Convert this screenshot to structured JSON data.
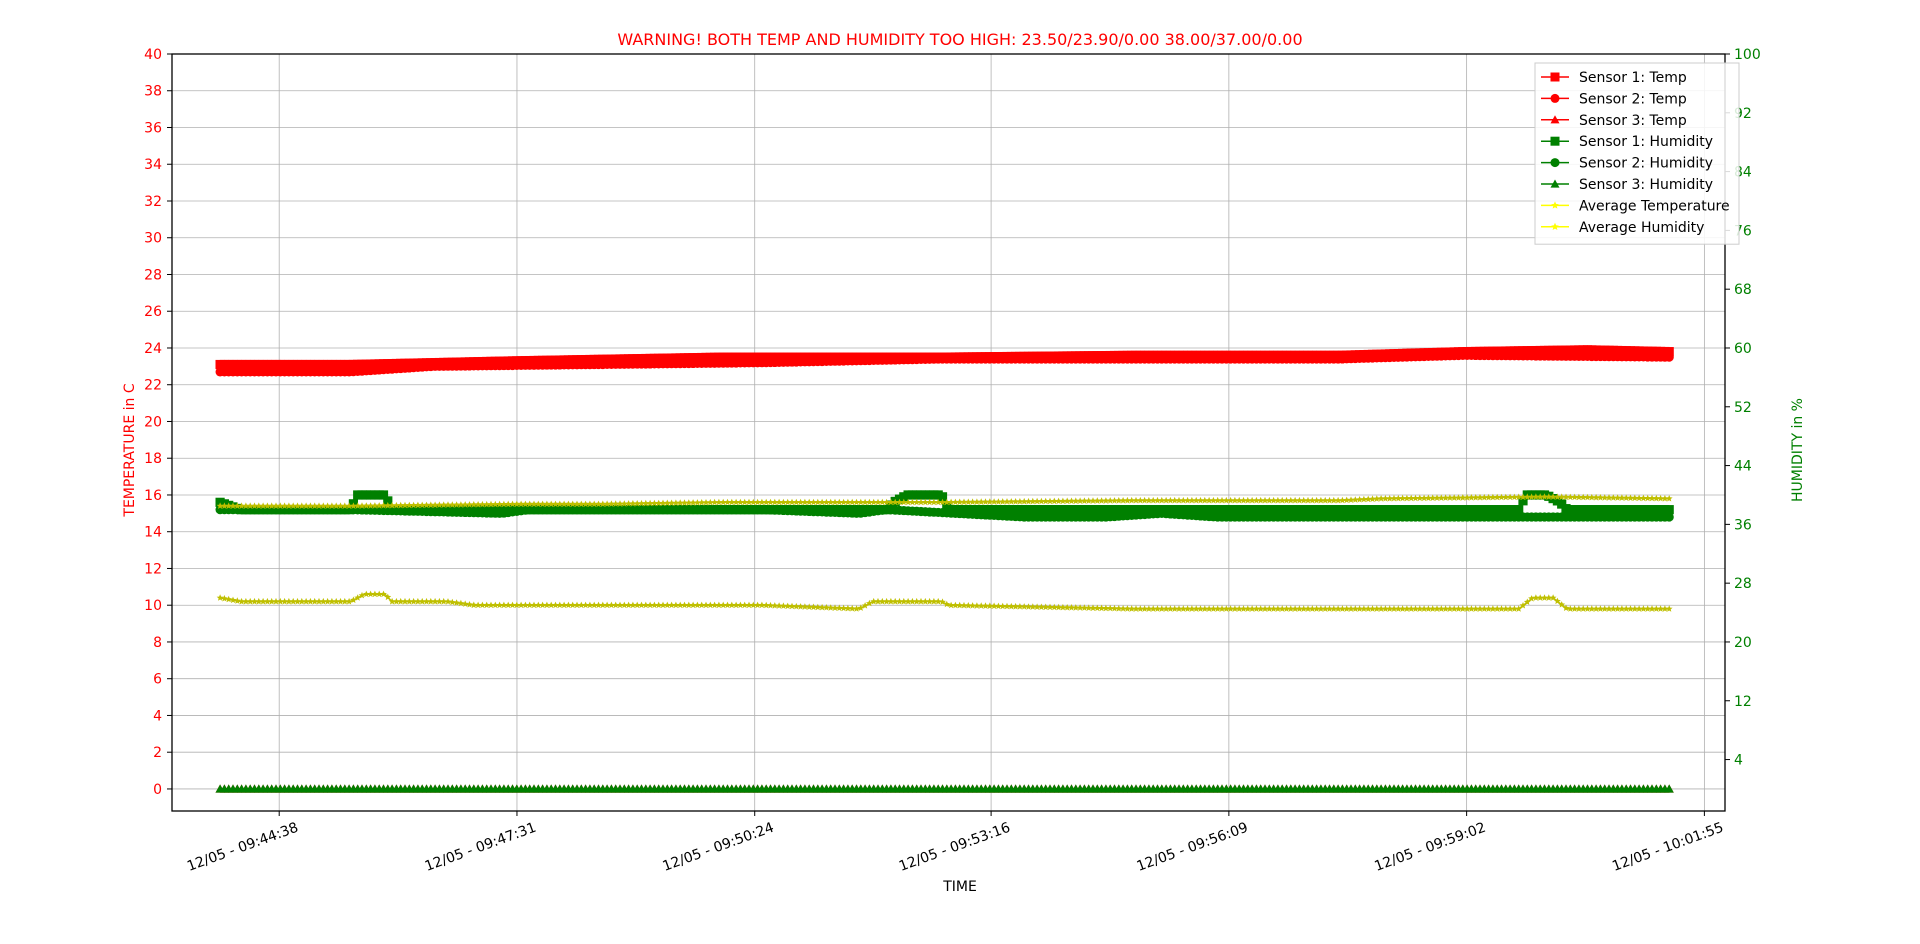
{
  "chart_data": {
    "type": "line",
    "title": "WARNING! BOTH TEMP AND HUMIDITY TOO HIGH: 23.50/23.90/0.00   38.00/37.00/0.00",
    "xlabel": "TIME",
    "ylabel_left": "TEMPERATURE in C",
    "ylabel_right": "HUMIDITY in %",
    "ylim_left": [
      -1.2,
      40
    ],
    "ylim_right": [
      -3,
      100
    ],
    "xlim": [
      "12/05 - 09:43:20",
      "12/05 - 10:02:10"
    ],
    "x_ticks": [
      "12/05 - 09:44:38",
      "12/05 - 09:47:31",
      "12/05 - 09:50:24",
      "12/05 - 09:53:16",
      "12/05 - 09:56:09",
      "12/05 - 09:59:02",
      "12/05 - 10:01:55"
    ],
    "y_ticks_left": [
      0,
      2,
      4,
      6,
      8,
      10,
      12,
      14,
      16,
      18,
      20,
      22,
      24,
      26,
      28,
      30,
      32,
      34,
      36,
      38,
      40
    ],
    "y_ticks_right": [
      4,
      12,
      20,
      28,
      36,
      44,
      52,
      60,
      68,
      76,
      84,
      92,
      100
    ],
    "grid": true,
    "legend_position": "top-right",
    "colors": {
      "temperature": "#ff0000",
      "humidity": "#008000",
      "average": "#bfbf00",
      "average_legend": "#ffff00"
    },
    "series": [
      {
        "name": "Sensor 1: Temp",
        "axis": "left",
        "color": "#ff0000",
        "marker": "square",
        "points": [
          [
            "12/05 - 09:43:55",
            23.1
          ],
          [
            "12/05 - 09:45:30",
            23.1
          ],
          [
            "12/05 - 09:47:30",
            23.3
          ],
          [
            "12/05 - 09:50:00",
            23.5
          ],
          [
            "12/05 - 09:52:40",
            23.5
          ],
          [
            "12/05 - 09:55:00",
            23.6
          ],
          [
            "12/05 - 09:57:30",
            23.6
          ],
          [
            "12/05 - 09:59:00",
            23.8
          ],
          [
            "12/05 - 10:00:30",
            23.9
          ],
          [
            "12/05 - 10:01:30",
            23.8
          ]
        ]
      },
      {
        "name": "Sensor 2: Temp",
        "axis": "left",
        "color": "#ff0000",
        "marker": "circle",
        "points": [
          [
            "12/05 - 09:43:55",
            22.7
          ],
          [
            "12/05 - 09:45:30",
            22.7
          ],
          [
            "12/05 - 09:46:30",
            23.0
          ],
          [
            "12/05 - 09:48:30",
            23.1
          ],
          [
            "12/05 - 09:50:30",
            23.2
          ],
          [
            "12/05 - 09:52:40",
            23.4
          ],
          [
            "12/05 - 09:55:00",
            23.4
          ],
          [
            "12/05 - 09:57:30",
            23.4
          ],
          [
            "12/05 - 09:59:00",
            23.6
          ],
          [
            "12/05 - 10:01:30",
            23.5
          ]
        ]
      },
      {
        "name": "Sensor 3: Temp",
        "axis": "left",
        "color": "#ff0000",
        "marker": "triangle",
        "points": [
          [
            "12/05 - 09:43:55",
            0
          ],
          [
            "12/05 - 10:01:30",
            0
          ]
        ]
      },
      {
        "name": "Sensor 1: Humidity",
        "axis": "right",
        "color": "#008000",
        "marker": "square",
        "points": [
          [
            "12/05 - 09:43:55",
            39
          ],
          [
            "12/05 - 09:44:10",
            38
          ],
          [
            "12/05 - 09:45:30",
            38
          ],
          [
            "12/05 - 09:45:35",
            40
          ],
          [
            "12/05 - 09:45:55",
            40
          ],
          [
            "12/05 - 09:46:00",
            38
          ],
          [
            "12/05 - 09:47:30",
            38
          ],
          [
            "12/05 - 09:52:00",
            38
          ],
          [
            "12/05 - 09:52:05",
            39
          ],
          [
            "12/05 - 09:52:15",
            40
          ],
          [
            "12/05 - 09:52:40",
            40
          ],
          [
            "12/05 - 09:52:45",
            38
          ],
          [
            "12/05 - 09:55:00",
            38
          ],
          [
            "12/05 - 09:59:00",
            38
          ],
          [
            "12/05 - 09:59:40",
            38
          ],
          [
            "12/05 - 09:59:45",
            40
          ],
          [
            "12/05 - 10:00:00",
            40
          ],
          [
            "12/05 - 10:00:10",
            39
          ],
          [
            "12/05 - 10:00:15",
            38
          ],
          [
            "12/05 - 10:01:30",
            38
          ]
        ]
      },
      {
        "name": "Sensor 2: Humidity",
        "axis": "right",
        "color": "#008000",
        "marker": "circle",
        "points": [
          [
            "12/05 - 09:43:55",
            38
          ],
          [
            "12/05 - 09:45:30",
            38
          ],
          [
            "12/05 - 09:47:20",
            37.5
          ],
          [
            "12/05 - 09:47:40",
            38
          ],
          [
            "12/05 - 09:50:30",
            38
          ],
          [
            "12/05 - 09:51:40",
            37.5
          ],
          [
            "12/05 - 09:52:00",
            38
          ],
          [
            "12/05 - 09:53:40",
            37
          ],
          [
            "12/05 - 09:54:40",
            37
          ],
          [
            "12/05 - 09:55:20",
            37.5
          ],
          [
            "12/05 - 09:56:00",
            37
          ],
          [
            "12/05 - 09:57:30",
            37
          ],
          [
            "12/05 - 09:59:00",
            37
          ],
          [
            "12/05 - 10:01:30",
            37
          ]
        ]
      },
      {
        "name": "Sensor 3: Humidity",
        "axis": "right",
        "color": "#008000",
        "marker": "triangle",
        "points": [
          [
            "12/05 - 09:43:55",
            0
          ],
          [
            "12/05 - 10:01:30",
            0
          ]
        ]
      },
      {
        "name": "Average Temperature",
        "axis": "left",
        "color": "#bfbf00",
        "marker": "star",
        "points": [
          [
            "12/05 - 09:43:55",
            15.4
          ],
          [
            "12/05 - 09:45:30",
            15.4
          ],
          [
            "12/05 - 09:47:30",
            15.5
          ],
          [
            "12/05 - 09:48:30",
            15.5
          ],
          [
            "12/05 - 09:50:00",
            15.6
          ],
          [
            "12/05 - 09:52:40",
            15.6
          ],
          [
            "12/05 - 09:55:00",
            15.7
          ],
          [
            "12/05 - 09:57:30",
            15.7
          ],
          [
            "12/05 - 09:58:00",
            15.8
          ],
          [
            "12/05 - 10:00:00",
            15.9
          ],
          [
            "12/05 - 10:01:30",
            15.8
          ]
        ]
      },
      {
        "name": "Average Humidity",
        "axis": "right",
        "color": "#bfbf00",
        "marker": "star",
        "points": [
          [
            "12/05 - 09:43:55",
            26
          ],
          [
            "12/05 - 09:44:10",
            25.5
          ],
          [
            "12/05 - 09:45:30",
            25.5
          ],
          [
            "12/05 - 09:45:40",
            26.5
          ],
          [
            "12/05 - 09:45:55",
            26.5
          ],
          [
            "12/05 - 09:46:00",
            25.5
          ],
          [
            "12/05 - 09:46:40",
            25.5
          ],
          [
            "12/05 - 09:47:00",
            25
          ],
          [
            "12/05 - 09:50:30",
            25
          ],
          [
            "12/05 - 09:51:40",
            24.5
          ],
          [
            "12/05 - 09:51:50",
            25.5
          ],
          [
            "12/05 - 09:52:40",
            25.5
          ],
          [
            "12/05 - 09:52:45",
            25
          ],
          [
            "12/05 - 09:55:00",
            24.5
          ],
          [
            "12/05 - 09:57:00",
            24.5
          ],
          [
            "12/05 - 09:59:40",
            24.5
          ],
          [
            "12/05 - 09:59:50",
            26
          ],
          [
            "12/05 - 10:00:05",
            26
          ],
          [
            "12/05 - 10:00:15",
            24.5
          ],
          [
            "12/05 - 10:01:30",
            24.5
          ]
        ]
      }
    ],
    "legend": [
      {
        "label": "Sensor 1: Temp",
        "color": "#ff0000",
        "marker": "square"
      },
      {
        "label": "Sensor 2: Temp",
        "color": "#ff0000",
        "marker": "circle"
      },
      {
        "label": "Sensor 3: Temp",
        "color": "#ff0000",
        "marker": "triangle"
      },
      {
        "label": "Sensor 1: Humidity",
        "color": "#008000",
        "marker": "square"
      },
      {
        "label": "Sensor 2: Humidity",
        "color": "#008000",
        "marker": "circle"
      },
      {
        "label": "Sensor 3: Humidity",
        "color": "#008000",
        "marker": "triangle"
      },
      {
        "label": "Average Temperature",
        "color": "#ffff00",
        "marker": "star"
      },
      {
        "label": "Average Humidity",
        "color": "#ffff00",
        "marker": "star"
      }
    ]
  }
}
